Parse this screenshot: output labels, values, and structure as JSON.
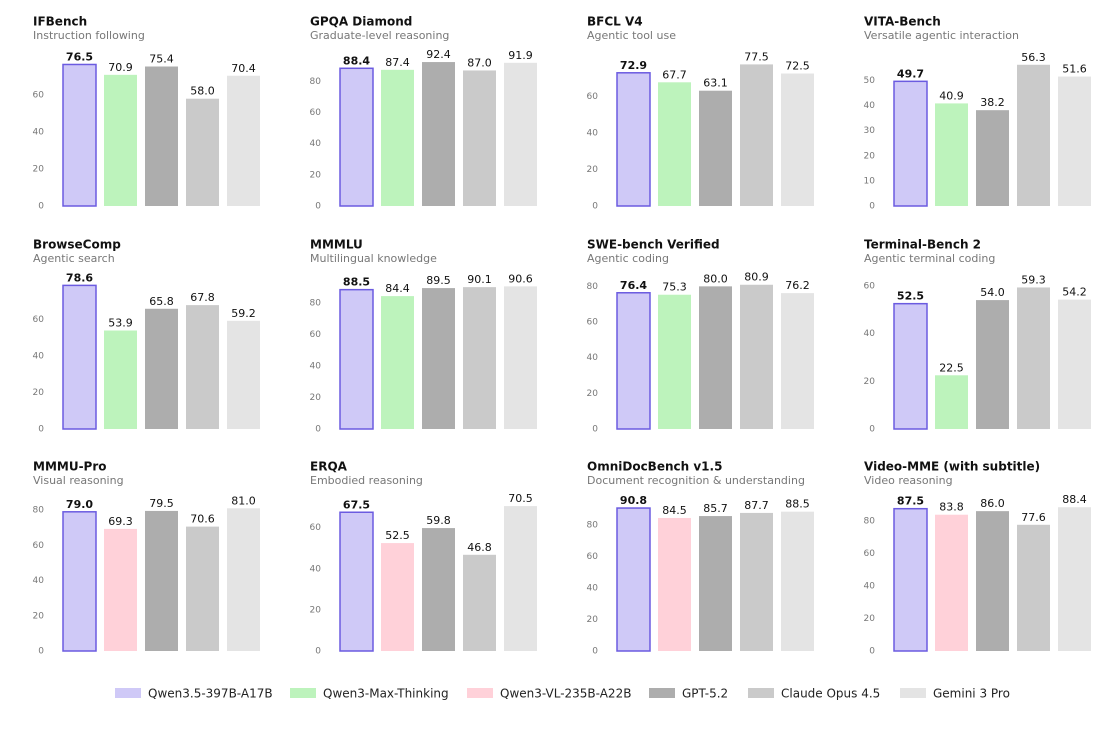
{
  "legend": [
    {
      "name": "Qwen3.5-397B-A17B",
      "color": "#cfc9f7"
    },
    {
      "name": "Qwen3-Max-Thinking",
      "color": "#bdf3bc"
    },
    {
      "name": "Qwen3-VL-235B-A22B",
      "color": "#ffd1d9"
    },
    {
      "name": "GPT-5.2",
      "color": "#adadad"
    },
    {
      "name": "Claude Opus 4.5",
      "color": "#cacaca"
    },
    {
      "name": "Gemini 3 Pro",
      "color": "#e4e4e4"
    }
  ],
  "chart_data": [
    {
      "type": "bar",
      "title": "IFBench",
      "subtitle": "Instruction following",
      "values": [
        76.5,
        70.9,
        75.4,
        58.0,
        70.4
      ],
      "value_labels": [
        "76.5",
        "70.9",
        "75.4",
        "58.0",
        "70.4"
      ],
      "colors": [
        "#cfc9f7",
        "#bdf3bc",
        "#adadad",
        "#cacaca",
        "#e4e4e4"
      ],
      "edgecolor": "#6b5be0",
      "ylim": [
        0,
        80
      ],
      "yticks": [
        0,
        20,
        40,
        60
      ]
    },
    {
      "type": "bar",
      "title": "GPQA Diamond",
      "subtitle": "Graduate-level reasoning",
      "values": [
        88.4,
        87.4,
        92.4,
        87.0,
        91.9
      ],
      "value_labels": [
        "88.4",
        "87.4",
        "92.4",
        "87.0",
        "91.9"
      ],
      "colors": [
        "#cfc9f7",
        "#bdf3bc",
        "#adadad",
        "#cacaca",
        "#e4e4e4"
      ],
      "edgecolor": "#6b5be0",
      "ylim": [
        0,
        95
      ],
      "yticks": [
        0,
        20,
        40,
        60,
        80
      ]
    },
    {
      "type": "bar",
      "title": "BFCL V4",
      "subtitle": "Agentic tool use",
      "values": [
        72.9,
        67.7,
        63.1,
        77.5,
        72.5
      ],
      "value_labels": [
        "72.9",
        "67.7",
        "63.1",
        "77.5",
        "72.5"
      ],
      "colors": [
        "#cfc9f7",
        "#bdf3bc",
        "#adadad",
        "#cacaca",
        "#e4e4e4"
      ],
      "edgecolor": "#6b5be0",
      "ylim": [
        0,
        81
      ],
      "yticks": [
        0,
        20,
        40,
        60
      ]
    },
    {
      "type": "bar",
      "title": "VITA-Bench",
      "subtitle": "Versatile agentic interaction",
      "values": [
        49.7,
        40.9,
        38.2,
        56.3,
        51.6
      ],
      "value_labels": [
        "49.7",
        "40.9",
        "38.2",
        "56.3",
        "51.6"
      ],
      "colors": [
        "#cfc9f7",
        "#bdf3bc",
        "#adadad",
        "#cacaca",
        "#e4e4e4"
      ],
      "edgecolor": "#6b5be0",
      "ylim": [
        0,
        59
      ],
      "yticks": [
        0,
        10,
        20,
        30,
        40,
        50
      ]
    },
    {
      "type": "bar",
      "title": "BrowseComp",
      "subtitle": "Agentic search",
      "values": [
        78.6,
        53.9,
        65.8,
        67.8,
        59.2
      ],
      "value_labels": [
        "78.6",
        "53.9",
        "65.8",
        "67.8",
        "59.2"
      ],
      "colors": [
        "#cfc9f7",
        "#bdf3bc",
        "#adadad",
        "#cacaca",
        "#e4e4e4"
      ],
      "edgecolor": "#6b5be0",
      "ylim": [
        0,
        81
      ],
      "yticks": [
        0,
        20,
        40,
        60
      ]
    },
    {
      "type": "bar",
      "title": "MMMLU",
      "subtitle": "Multilingual knowledge",
      "values": [
        88.5,
        84.4,
        89.5,
        90.1,
        90.6
      ],
      "value_labels": [
        "88.5",
        "84.4",
        "89.5",
        "90.1",
        "90.6"
      ],
      "colors": [
        "#cfc9f7",
        "#bdf3bc",
        "#adadad",
        "#cacaca",
        "#e4e4e4"
      ],
      "edgecolor": "#6b5be0",
      "ylim": [
        0,
        94
      ],
      "yticks": [
        0,
        20,
        40,
        60,
        80
      ]
    },
    {
      "type": "bar",
      "title": "SWE-bench Verified",
      "subtitle": "Agentic coding",
      "values": [
        76.4,
        75.3,
        80.0,
        80.9,
        76.2
      ],
      "value_labels": [
        "76.4",
        "75.3",
        "80.0",
        "80.9",
        "76.2"
      ],
      "colors": [
        "#cfc9f7",
        "#bdf3bc",
        "#adadad",
        "#cacaca",
        "#e4e4e4"
      ],
      "edgecolor": "#6b5be0",
      "ylim": [
        0,
        83
      ],
      "yticks": [
        0,
        20,
        40,
        60,
        80
      ]
    },
    {
      "type": "bar",
      "title": "Terminal-Bench 2",
      "subtitle": "Agentic terminal coding",
      "values": [
        52.5,
        22.5,
        54.0,
        59.3,
        54.2
      ],
      "value_labels": [
        "52.5",
        "22.5",
        "54.0",
        "59.3",
        "54.2"
      ],
      "colors": [
        "#cfc9f7",
        "#bdf3bc",
        "#adadad",
        "#cacaca",
        "#e4e4e4"
      ],
      "edgecolor": "#6b5be0",
      "ylim": [
        0,
        62
      ],
      "yticks": [
        0,
        20,
        40,
        60
      ]
    },
    {
      "type": "bar",
      "title": "MMMU-Pro",
      "subtitle": "Visual reasoning",
      "values": [
        79.0,
        69.3,
        79.5,
        70.6,
        81.0
      ],
      "value_labels": [
        "79.0",
        "69.3",
        "79.5",
        "70.6",
        "81.0"
      ],
      "colors": [
        "#cfc9f7",
        "#ffd1d9",
        "#adadad",
        "#cacaca",
        "#e4e4e4"
      ],
      "edgecolor": "#6b5be0",
      "ylim": [
        0,
        84
      ],
      "yticks": [
        0,
        20,
        40,
        60,
        80
      ]
    },
    {
      "type": "bar",
      "title": "ERQA",
      "subtitle": "Embodied reasoning",
      "values": [
        67.5,
        52.5,
        59.8,
        46.8,
        70.5
      ],
      "value_labels": [
        "67.5",
        "52.5",
        "59.8",
        "46.8",
        "70.5"
      ],
      "colors": [
        "#cfc9f7",
        "#ffd1d9",
        "#adadad",
        "#cacaca",
        "#e4e4e4"
      ],
      "edgecolor": "#6b5be0",
      "ylim": [
        0,
        72
      ],
      "yticks": [
        0,
        20,
        40,
        60
      ]
    },
    {
      "type": "bar",
      "title": "OmniDocBench v1.5",
      "subtitle": "Document recognition & understanding",
      "values": [
        90.8,
        84.5,
        85.7,
        87.7,
        88.5
      ],
      "value_labels": [
        "90.8",
        "84.5",
        "85.7",
        "87.7",
        "88.5"
      ],
      "colors": [
        "#cfc9f7",
        "#ffd1d9",
        "#adadad",
        "#cacaca",
        "#e4e4e4"
      ],
      "edgecolor": "#6b5be0",
      "ylim": [
        0,
        94
      ],
      "yticks": [
        0,
        20,
        40,
        60,
        80
      ]
    },
    {
      "type": "bar",
      "title": "Video-MME (with subtitle)",
      "subtitle": "Video reasoning",
      "values": [
        87.5,
        83.8,
        86.0,
        77.6,
        88.4
      ],
      "value_labels": [
        "87.5",
        "83.8",
        "86.0",
        "77.6",
        "88.4"
      ],
      "colors": [
        "#cfc9f7",
        "#ffd1d9",
        "#adadad",
        "#cacaca",
        "#e4e4e4"
      ],
      "edgecolor": "#6b5be0",
      "ylim": [
        0,
        91
      ],
      "yticks": [
        0,
        20,
        40,
        60,
        80
      ]
    }
  ]
}
